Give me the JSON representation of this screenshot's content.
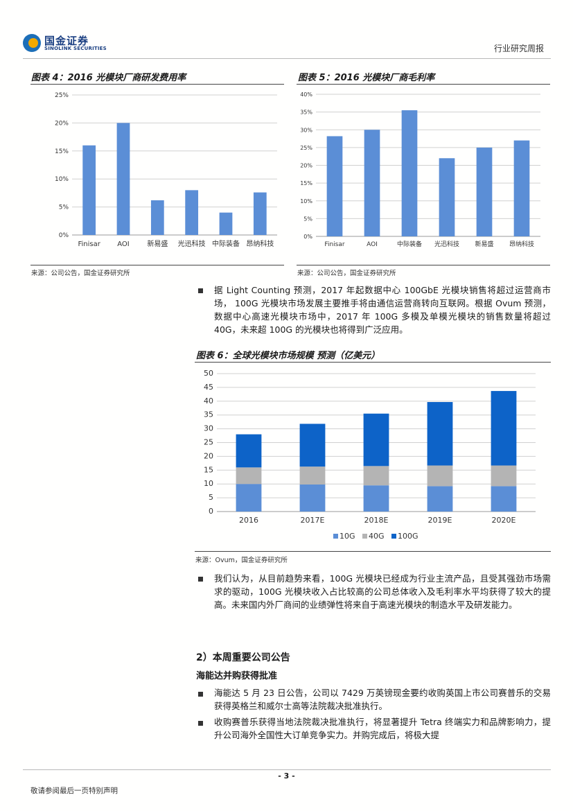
{
  "header": {
    "logo_cn": "国金证券",
    "logo_en": "SINOLINK SECURITIES",
    "report_type": "行业研究周报"
  },
  "chart4": {
    "title": "图表 4：2016 光模块厂商研发费用率",
    "source": "来源：公司公告，国金证券研究所"
  },
  "chart5": {
    "title": "图表 5：2016 光模块厂商毛利率",
    "source": "来源：公司公告，国金证券研究所"
  },
  "chart6": {
    "title": "图表 6：全球光模块市场规模 预测（亿美元）",
    "source": "来源：Ovum，国金证券研究所"
  },
  "chart_data": [
    {
      "type": "bar",
      "categories": [
        "Finisar",
        "AOI",
        "新易盛",
        "光迅科技",
        "中际装备",
        "昂纳科技"
      ],
      "values": [
        16,
        20,
        6.2,
        8,
        4,
        7.6
      ],
      "ylim": [
        0,
        25
      ],
      "yticks": [
        "0%",
        "5%",
        "10%",
        "15%",
        "20%",
        "25%"
      ],
      "grid": true,
      "color": "#5b8ed6"
    },
    {
      "type": "bar",
      "categories": [
        "Finisar",
        "AOI",
        "中际装备",
        "光迅科技",
        "新易盛",
        "昂纳科技"
      ],
      "values": [
        28.2,
        30,
        35.5,
        22,
        25,
        27
      ],
      "ylim": [
        0,
        40
      ],
      "yticks": [
        "0%",
        "5%",
        "10%",
        "15%",
        "20%",
        "25%",
        "30%",
        "35%",
        "40%"
      ],
      "grid": true,
      "color": "#5b8ed6"
    },
    {
      "type": "bar",
      "stacked": true,
      "categories": [
        "2016",
        "2017E",
        "2018E",
        "2019E",
        "2020E"
      ],
      "series": [
        {
          "name": "10G",
          "values": [
            10,
            9.8,
            9.5,
            9.2,
            9.2
          ],
          "color": "#5b8ed6"
        },
        {
          "name": "40G",
          "values": [
            6,
            6.5,
            7,
            7.5,
            7.5
          ],
          "color": "#b4b4b4"
        },
        {
          "name": "100G",
          "values": [
            12,
            15.5,
            19,
            23,
            27
          ],
          "color": "#0d63c8"
        }
      ],
      "ylim": [
        0,
        50
      ],
      "yticks": [
        "0",
        "5",
        "10",
        "15",
        "20",
        "25",
        "30",
        "35",
        "40",
        "45",
        "50"
      ],
      "grid": true,
      "legend": "bottom"
    }
  ],
  "bullets": [
    "据 Light Counting 预测，2017 年起数据中心 100GbE 光模块销售将超过运营商市场， 100G 光模块市场发展主要推手将由通信运营商转向互联网。根据 Ovum 预测，数据中心高速光模块市场中，2017 年 100G 多模及单模光模块的销售数量将超过 40G，未来超 100G 的光模块也将得到广泛应用。",
    "我们认为，从目前趋势来看，100G 光模块已经成为行业主流产品，且受其强劲市场需求的驱动，100G 光模块收入占比较高的公司总体收入及毛利率水平均获得了较大的提高。未来国内外厂商间的业绩弹性将来自于高速光模块的制造水平及研发能力。"
  ],
  "section": {
    "title": "2）本周重要公司公告",
    "subtitle": "海能达并购获得批准",
    "bullets": [
      "海能达 5 月 23 日公告，公司以 7429 万英镑现金要约收购英国上市公司赛普乐的交易获得英格兰和威尔士高等法院裁决批准执行。",
      "收购赛普乐获得当地法院裁决批准执行，将显著提升 Tetra 终端实力和品牌影响力，提升公司海外全国性大订单竞争实力。并购完成后，将极大提"
    ]
  },
  "footer": {
    "page": "- 3 -",
    "disclaimer": "敬请参阅最后一页特别声明"
  }
}
